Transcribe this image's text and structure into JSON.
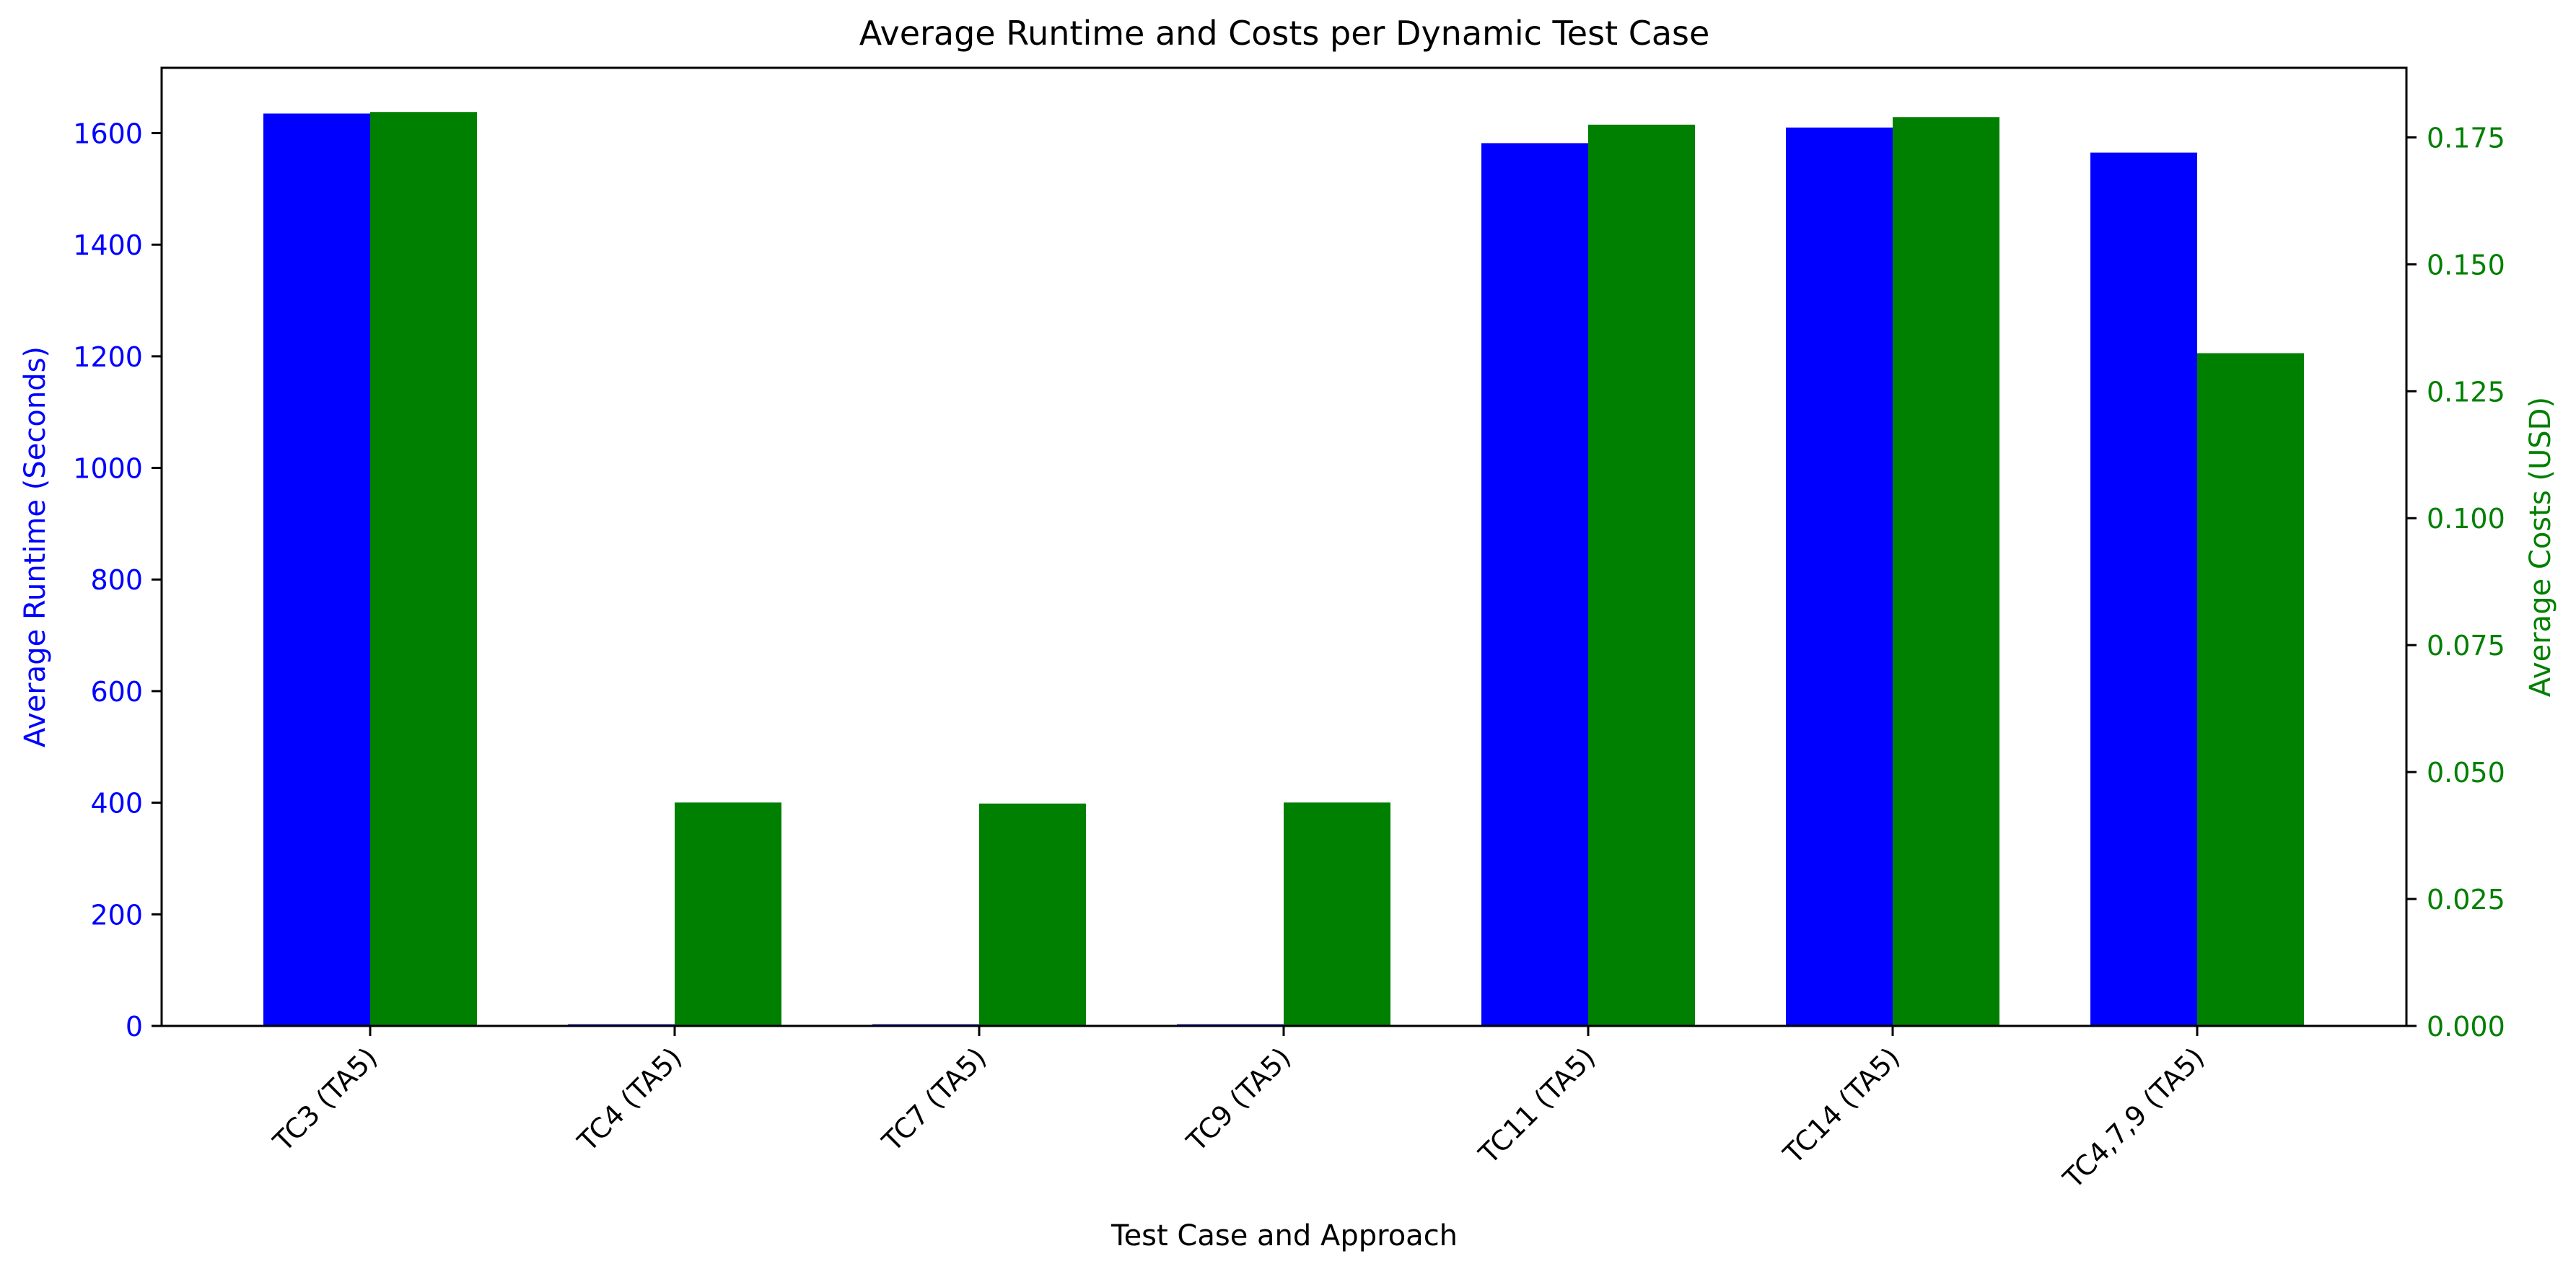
{
  "chart_data": {
    "type": "bar",
    "title": "Average Runtime and Costs per Dynamic Test Case",
    "xlabel": "Test Case and Approach",
    "ylabel_left": "Average Runtime (Seconds)",
    "ylabel_right": "Average Costs (USD)",
    "categories": [
      "TC3 (TA5)",
      "TC4 (TA5)",
      "TC7 (TA5)",
      "TC9 (TA5)",
      "TC11 (TA5)",
      "TC14 (TA5)",
      "TC4,7,9 (TA5)"
    ],
    "series": [
      {
        "axis": "left",
        "color": "#0000ff",
        "values": [
          1635,
          3,
          3,
          3,
          1582,
          1610,
          1565
        ]
      },
      {
        "axis": "right",
        "color": "#008000",
        "values": [
          0.18,
          0.044,
          0.0438,
          0.044,
          0.1775,
          0.179,
          0.1325
        ]
      }
    ],
    "ylim_left": [
      0,
      1717
    ],
    "ylim_right": [
      0,
      0.1887
    ],
    "yticks_left": [
      "0",
      "200",
      "400",
      "600",
      "800",
      "1000",
      "1200",
      "1400",
      "1600"
    ],
    "yticks_right": [
      "0.000",
      "0.025",
      "0.050",
      "0.075",
      "0.100",
      "0.125",
      "0.150",
      "0.175"
    ],
    "left_axis_color": "#0000ff",
    "right_axis_color": "#008000",
    "grid": false,
    "legend": "none"
  }
}
